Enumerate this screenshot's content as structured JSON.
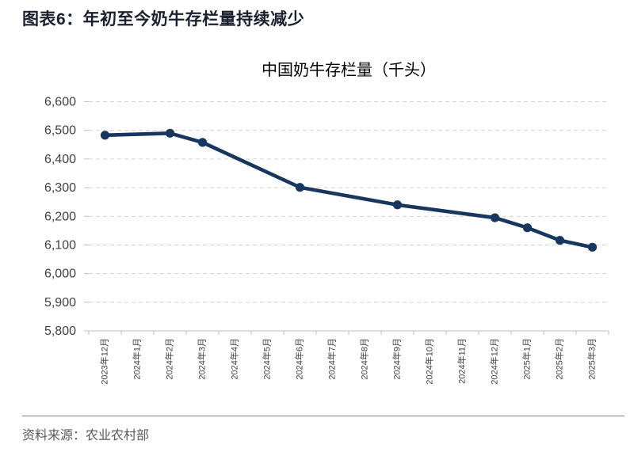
{
  "header": {
    "title": "图表6：年初至今奶牛存栏量持续减少"
  },
  "footer": {
    "source": "资料来源：农业农村部"
  },
  "colors": {
    "line": "#17375e",
    "gridline": "#d2d2d2",
    "axis": "#bfbfbf",
    "tick_label": "#404040",
    "header_text": "#1c1f2e",
    "source_text": "#595959",
    "divider": "#808080"
  },
  "chart_data": {
    "type": "line",
    "title": "中国奶牛存栏量（千头）",
    "categories": [
      "2023年12月",
      "2024年1月",
      "2024年2月",
      "2024年3月",
      "2024年4月",
      "2024年5月",
      "2024年6月",
      "2024年7月",
      "2024年8月",
      "2024年9月",
      "2024年10月",
      "2024年11月",
      "2024年12月",
      "2025年1月",
      "2025年2月",
      "2025年3月"
    ],
    "series": [
      {
        "name": "中国奶牛存栏量",
        "values": [
          6483,
          null,
          6490,
          6458,
          null,
          null,
          6301,
          null,
          null,
          6240,
          null,
          null,
          6195,
          6160,
          6116,
          6092
        ]
      }
    ],
    "xlabel": "",
    "ylabel": "",
    "ylim": [
      5800,
      6600
    ],
    "ytick_step": 100,
    "grid": "horizontal-dashed",
    "legend_position": "none",
    "marker": "circle"
  }
}
